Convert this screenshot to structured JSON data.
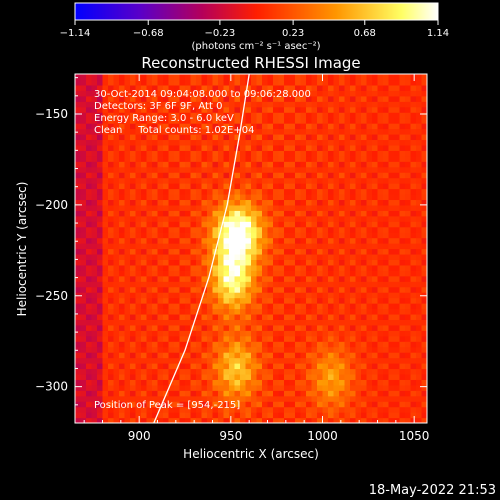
{
  "chart_data": {
    "type": "heatmap",
    "title": "Reconstructed RHESSI Image",
    "xlabel": "Heliocentric X (arcsec)",
    "ylabel": "Heliocentric Y (arcsec)",
    "xlim": [
      865,
      1057
    ],
    "ylim": [
      -320,
      -128
    ],
    "x_ticks": [
      900,
      950,
      1000,
      1050
    ],
    "y_ticks": [
      -150,
      -200,
      -250,
      -300
    ],
    "x_tick_labels": [
      "900",
      "950",
      "1000",
      "1050"
    ],
    "y_tick_labels": [
      "−150",
      "−200",
      "−250",
      "−300"
    ],
    "colorbar": {
      "min": -1.14,
      "max": 1.14,
      "ticks": [
        -1.14,
        -0.68,
        -0.23,
        0.23,
        0.68,
        1.14
      ],
      "tick_labels": [
        "−1.14",
        "−0.68",
        "−0.23",
        "0.23",
        "0.68",
        "1.14"
      ],
      "unit_label": "(photons cm⁻² s⁻¹ asec⁻²)"
    },
    "annotations": [
      "30-Oct-2014 09:04:08.000 to 09:06:28.000",
      "Detectors: 3F 6F 9F, Att 0",
      "Energy Range: 3.0 - 6.0 keV",
      "Clean     Total counts: 1.02E+04"
    ],
    "peak": {
      "x": 954,
      "y": -215,
      "label": "Position of Peak = [954,-215]"
    },
    "sources": [
      {
        "x": 954,
        "y": -215,
        "peak": 1.14
      },
      {
        "x": 951,
        "y": -240,
        "peak": 0.9
      },
      {
        "x": 953,
        "y": -290,
        "peak": 0.6
      },
      {
        "x": 1005,
        "y": -295,
        "peak": 0.45
      }
    ],
    "limb_curve": [
      [
        908,
        -320
      ],
      [
        925,
        -280
      ],
      [
        938,
        -240
      ],
      [
        948,
        -200
      ],
      [
        955,
        -160
      ],
      [
        960,
        -128
      ]
    ],
    "timestamp": "18-May-2022 21:53"
  },
  "colors": {
    "background": "#000000",
    "axes": "#ffffff",
    "colormap": [
      "#0000ff",
      "#5a00c8",
      "#b4005a",
      "#ff1e00",
      "#ff9600",
      "#ffff64",
      "#ffffff"
    ]
  }
}
